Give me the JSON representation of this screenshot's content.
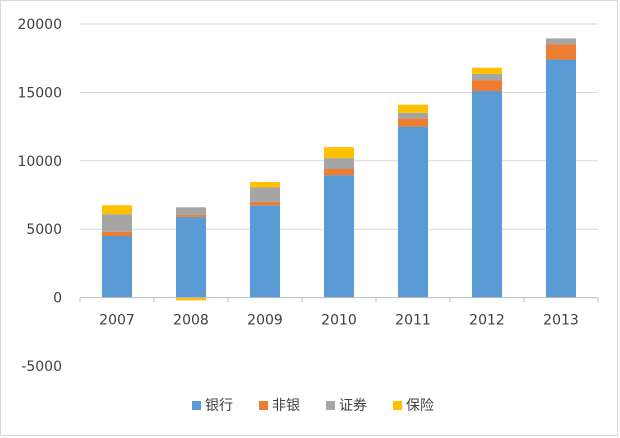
{
  "chart_data": {
    "type": "bar",
    "stacked": true,
    "categories": [
      "2007",
      "2008",
      "2009",
      "2010",
      "2011",
      "2012",
      "2013"
    ],
    "series": [
      {
        "name": "银行",
        "color": "#5B9BD5",
        "values": [
          4500,
          5900,
          6750,
          8950,
          12500,
          15100,
          17400
        ]
      },
      {
        "name": "非银",
        "color": "#ED7D31",
        "values": [
          300,
          150,
          250,
          450,
          600,
          800,
          1100
        ]
      },
      {
        "name": "证券",
        "color": "#A5A5A5",
        "values": [
          1300,
          550,
          1050,
          800,
          400,
          450,
          450
        ]
      },
      {
        "name": "保险",
        "color": "#FFC000",
        "values": [
          650,
          0,
          400,
          800,
          600,
          450,
          0
        ]
      },
      {
        "name": "保险",
        "color": "#FFC000",
        "negative_values": [
          0,
          -200,
          0,
          0,
          0,
          0,
          0
        ]
      }
    ],
    "y_ticks": [
      "20000",
      "15000",
      "10000",
      "5000",
      "0",
      "-5000"
    ],
    "ylim": [
      -5000,
      20000
    ],
    "grid": true,
    "legend": {
      "position": "bottom",
      "items": [
        "银行",
        "非银",
        "证券",
        "保险"
      ]
    },
    "title": "",
    "xlabel": "",
    "ylabel": ""
  }
}
